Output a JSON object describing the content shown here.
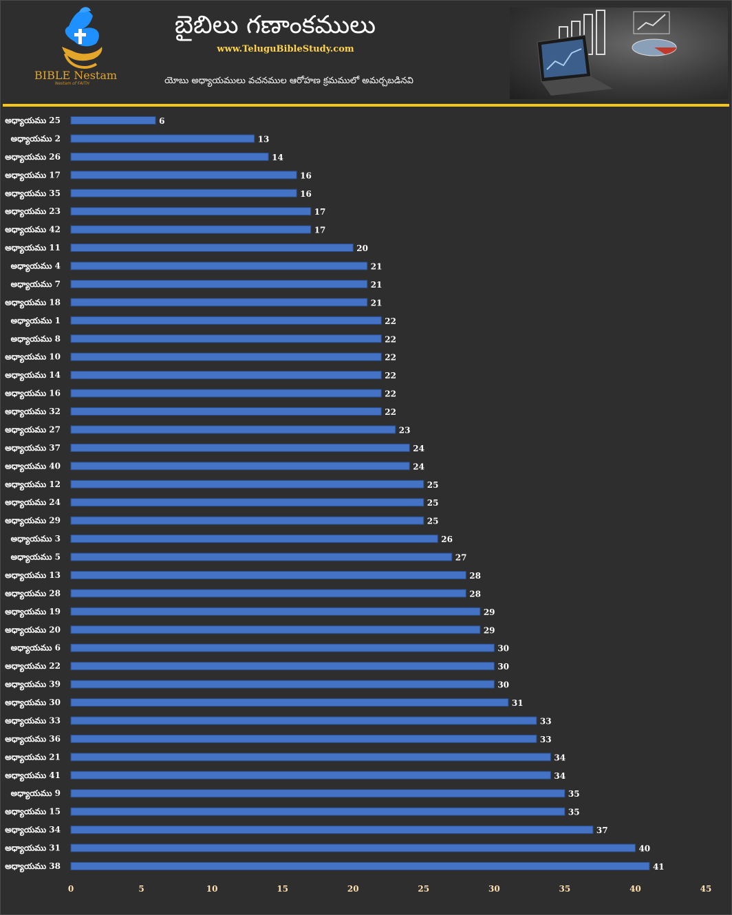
{
  "header": {
    "title": "బైబిలు గణాంకములు",
    "website": "www.TeluguBibleStudy.com",
    "subtitle": "యోబు అధ్యాయములు వచనముల ఆరోహణ క్రమములో అమర్చబడినవి",
    "logo_text": "BIBLE Nestam",
    "logo_tagline": "Nestam of FAITH",
    "logo_icon": "dove-cross-hand-icon",
    "photo_icon": "laptop-charts-photo"
  },
  "colors": {
    "background": "#2e2e2e",
    "bar": "#4472c4",
    "accent": "#f5c518",
    "website": "#ffd34a",
    "logo": "#e3a52a"
  },
  "chart_data": {
    "type": "bar",
    "orientation": "horizontal",
    "categories": [
      "అధ్యాయము 25",
      "అధ్యాయము 2",
      "అధ్యాయము 26",
      "అధ్యాయము 17",
      "అధ్యాయము 35",
      "అధ్యాయము 23",
      "అధ్యాయము 42",
      "అధ్యాయము 11",
      "అధ్యాయము 4",
      "అధ్యాయము 7",
      "అధ్యాయము 18",
      "అధ్యాయము 1",
      "అధ్యాయము 8",
      "అధ్యాయము 10",
      "అధ్యాయము 14",
      "అధ్యాయము 16",
      "అధ్యాయము 32",
      "అధ్యాయము 27",
      "అధ్యాయము 37",
      "అధ్యాయము 40",
      "అధ్యాయము 12",
      "అధ్యాయము 24",
      "అధ్యాయము 29",
      "అధ్యాయము 3",
      "అధ్యాయము 5",
      "అధ్యాయము 13",
      "అధ్యాయము 28",
      "అధ్యాయము 19",
      "అధ్యాయము 20",
      "అధ్యాయము 6",
      "అధ్యాయము 22",
      "అధ్యాయము 39",
      "అధ్యాయము 30",
      "అధ్యాయము 33",
      "అధ్యాయము 36",
      "అధ్యాయము 21",
      "అధ్యాయము 41",
      "అధ్యాయము 9",
      "అధ్యాయము 15",
      "అధ్యాయము 34",
      "అధ్యాయము 31",
      "అధ్యాయము 38"
    ],
    "values": [
      6,
      13,
      14,
      16,
      16,
      17,
      17,
      20,
      21,
      21,
      21,
      22,
      22,
      22,
      22,
      22,
      22,
      23,
      24,
      24,
      25,
      25,
      25,
      26,
      27,
      28,
      28,
      29,
      29,
      30,
      30,
      30,
      31,
      33,
      33,
      34,
      34,
      35,
      35,
      37,
      40,
      41
    ],
    "xlim": [
      0,
      45
    ],
    "xticks": [
      0,
      5,
      10,
      15,
      20,
      25,
      30,
      35,
      40,
      45
    ],
    "title": "",
    "xlabel": "",
    "ylabel": "",
    "grid": false,
    "legend": "none",
    "data_labels": true
  }
}
